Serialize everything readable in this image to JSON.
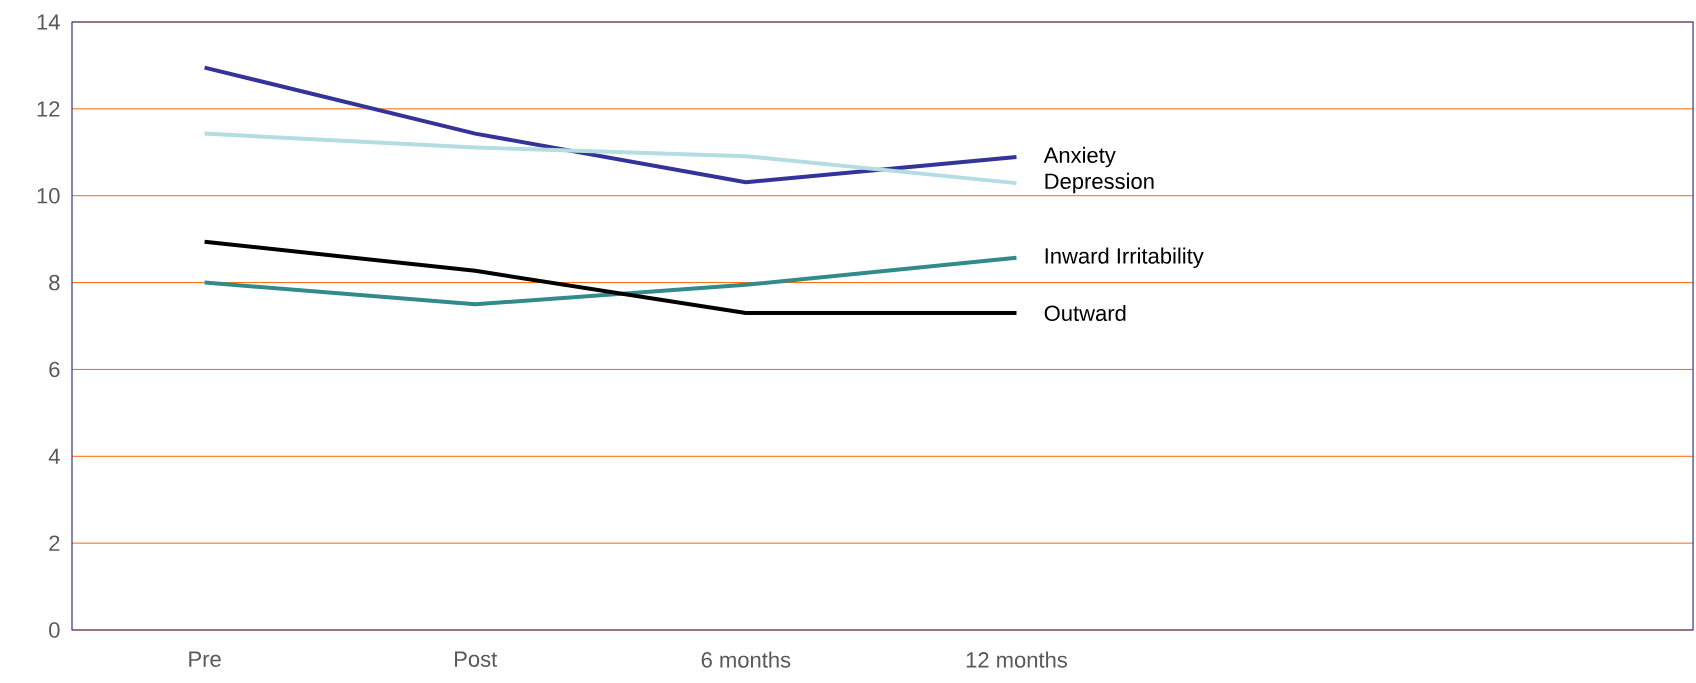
{
  "chart_data": {
    "type": "line",
    "categories": [
      "Pre",
      "Post",
      "6 months",
      "12 months",
      null,
      null
    ],
    "series": [
      {
        "name": "Anxiety",
        "color": "#333399",
        "values": [
          12.95,
          11.43,
          10.31,
          10.89,
          null,
          null
        ]
      },
      {
        "name": "Depression",
        "color": "#b3dde0",
        "values": [
          11.43,
          11.11,
          10.91,
          10.29,
          null,
          null
        ]
      },
      {
        "name": "Inward Irritability",
        "color": "#338a8a",
        "values": [
          8.0,
          7.5,
          7.95,
          8.57,
          null,
          null
        ]
      },
      {
        "name": "Outward",
        "color": "#000000",
        "values": [
          8.94,
          8.27,
          7.3,
          7.3,
          null,
          null
        ]
      }
    ],
    "ylim": [
      0,
      14
    ],
    "yticks": [
      0,
      2,
      4,
      6,
      8,
      10,
      12,
      14
    ],
    "grid": "y",
    "marker": "none",
    "line_style": "solid"
  }
}
